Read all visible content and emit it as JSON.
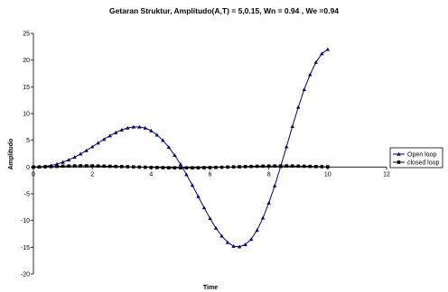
{
  "chart_data": {
    "type": "line",
    "title": "Getaran Struktur, Amplitudo(A,T) = 5,0.15, Wn = 0.94 , We =0.94",
    "xlabel": "Time",
    "ylabel": "Amplitudo",
    "xlim": [
      0,
      12
    ],
    "ylim": [
      -20,
      25
    ],
    "x_ticks": [
      0,
      2,
      4,
      6,
      8,
      10,
      12
    ],
    "y_ticks": [
      -20,
      -15,
      -10,
      -5,
      0,
      5,
      10,
      15,
      20,
      25
    ],
    "grid": false,
    "legend_position": "right",
    "series": [
      {
        "name": "Open loop",
        "marker": "triangle",
        "color": "#000080",
        "x": [
          0,
          0.2,
          0.4,
          0.6,
          0.8,
          1.0,
          1.2,
          1.4,
          1.6,
          1.8,
          2.0,
          2.2,
          2.4,
          2.6,
          2.8,
          3.0,
          3.2,
          3.4,
          3.6,
          3.8,
          4.0,
          4.2,
          4.4,
          4.6,
          4.8,
          5.0,
          5.2,
          5.4,
          5.6,
          5.8,
          6.0,
          6.2,
          6.4,
          6.6,
          6.8,
          7.0,
          7.2,
          7.4,
          7.6,
          7.8,
          8.0,
          8.2,
          8.4,
          8.6,
          8.8,
          9.0,
          9.2,
          9.4,
          9.6,
          9.8,
          10.0
        ],
        "y": [
          0.0,
          0.03,
          0.12,
          0.3,
          0.55,
          0.9,
          1.35,
          1.85,
          2.45,
          3.1,
          3.8,
          4.5,
          5.2,
          5.85,
          6.45,
          6.95,
          7.3,
          7.5,
          7.5,
          7.3,
          6.8,
          6.0,
          5.0,
          3.7,
          2.2,
          0.5,
          -1.4,
          -3.4,
          -5.5,
          -7.6,
          -9.6,
          -11.4,
          -12.9,
          -14.1,
          -14.8,
          -14.9,
          -14.5,
          -13.5,
          -11.8,
          -9.5,
          -6.7,
          -3.5,
          0.1,
          3.8,
          7.6,
          11.2,
          14.5,
          17.3,
          19.6,
          21.2,
          22.0
        ]
      },
      {
        "name": "closed loop",
        "marker": "square",
        "color": "#000000",
        "x": [
          0,
          0.2,
          0.4,
          0.6,
          0.8,
          1.0,
          1.2,
          1.4,
          1.6,
          1.8,
          2.0,
          2.2,
          2.4,
          2.6,
          2.8,
          3.0,
          3.2,
          3.4,
          3.6,
          3.8,
          4.0,
          4.2,
          4.4,
          4.6,
          4.8,
          5.0,
          5.2,
          5.4,
          5.6,
          5.8,
          6.0,
          6.2,
          6.4,
          6.6,
          6.8,
          7.0,
          7.2,
          7.4,
          7.6,
          7.8,
          8.0,
          8.2,
          8.4,
          8.6,
          8.8,
          9.0,
          9.2,
          9.4,
          9.6,
          9.8,
          10.0
        ],
        "y": [
          0.0,
          0.01,
          0.04,
          0.08,
          0.12,
          0.16,
          0.19,
          0.21,
          0.22,
          0.22,
          0.21,
          0.19,
          0.17,
          0.14,
          0.11,
          0.08,
          0.05,
          0.02,
          -0.01,
          -0.04,
          -0.07,
          -0.1,
          -0.12,
          -0.14,
          -0.15,
          -0.16,
          -0.16,
          -0.15,
          -0.14,
          -0.12,
          -0.1,
          -0.07,
          -0.04,
          -0.01,
          0.02,
          0.05,
          0.08,
          0.11,
          0.14,
          0.16,
          0.18,
          0.19,
          0.2,
          0.2,
          0.19,
          0.17,
          0.15,
          0.12,
          0.09,
          0.06,
          0.03
        ]
      }
    ]
  }
}
